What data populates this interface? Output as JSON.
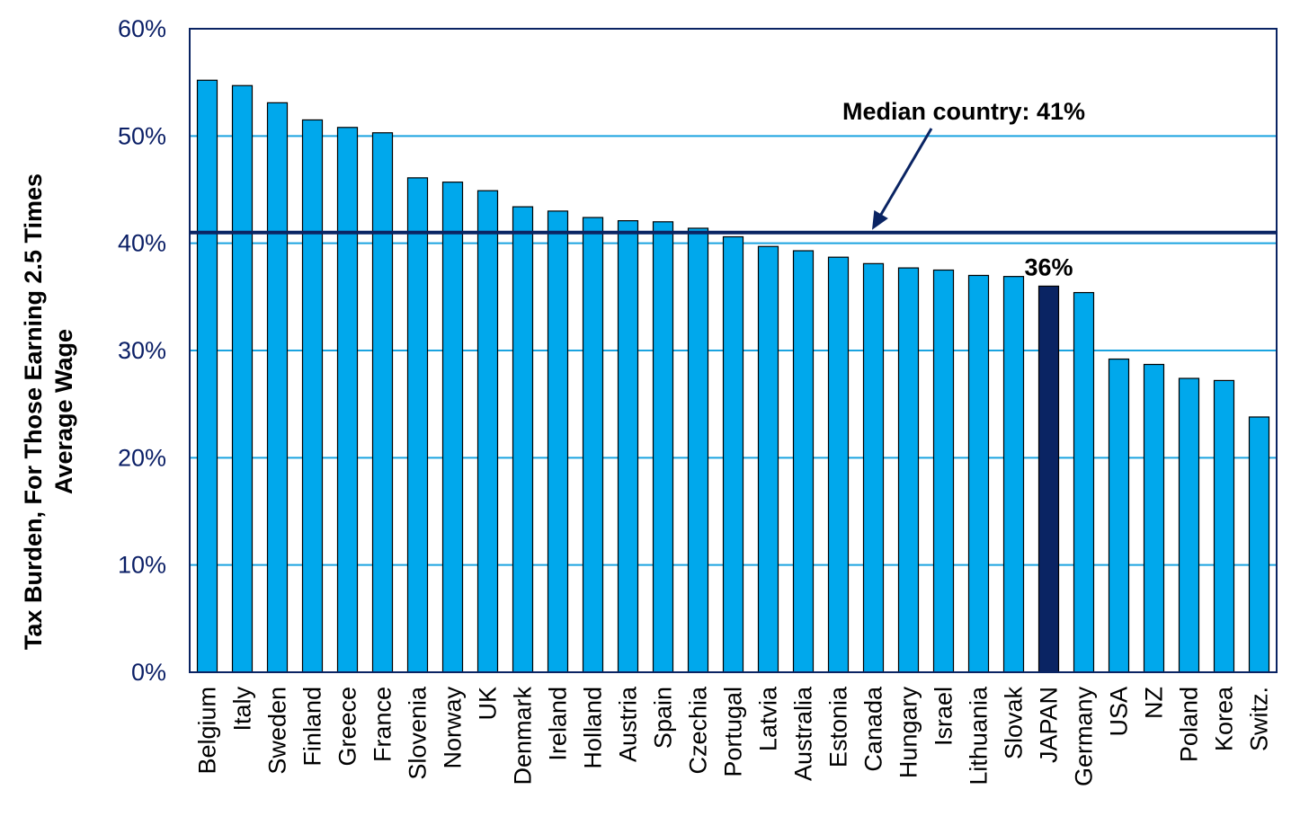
{
  "chart_data": {
    "type": "bar",
    "title": "",
    "xlabel": "",
    "ylabel_lines": [
      "Tax Burden, For Those Earning 2.5 Times",
      "Average Wage"
    ],
    "ylim": [
      0,
      60
    ],
    "yticks": [
      0,
      10,
      20,
      30,
      40,
      50,
      60
    ],
    "ytick_labels": [
      "0%",
      "10%",
      "20%",
      "30%",
      "40%",
      "50%",
      "60%"
    ],
    "categories": [
      "Belgium",
      "Italy",
      "Sweden",
      "Finland",
      "Greece",
      "France",
      "Slovenia",
      "Norway",
      "UK",
      "Denmark",
      "Ireland",
      "Holland",
      "Austria",
      "Spain",
      "Czechia",
      "Portugal",
      "Latvia",
      "Australia",
      "Estonia",
      "Canada",
      "Hungary",
      "Israel",
      "Lithuania",
      "Slovak",
      "JAPAN",
      "Germany",
      "USA",
      "NZ",
      "Poland",
      "Korea",
      "Switz."
    ],
    "values": [
      55.2,
      54.7,
      53.1,
      51.5,
      50.8,
      50.3,
      46.1,
      45.7,
      44.9,
      43.4,
      43.0,
      42.4,
      42.1,
      42.0,
      41.4,
      40.6,
      39.7,
      39.3,
      38.7,
      38.1,
      37.7,
      37.5,
      37.0,
      36.9,
      36.0,
      35.4,
      29.2,
      28.7,
      27.4,
      27.2,
      23.8
    ],
    "highlight_category": "JAPAN",
    "highlight_label": "36%",
    "median_value": 41,
    "median_label": "Median country: 41%",
    "grid": true,
    "colors": {
      "bar": "#00a8ec",
      "bar_highlight": "#0a2463",
      "bar_edge": "#000000",
      "median_line": "#0a2463",
      "grid": "#1aa3e0",
      "frame": "#0a2463",
      "tick_text": "#0b1f66"
    }
  }
}
